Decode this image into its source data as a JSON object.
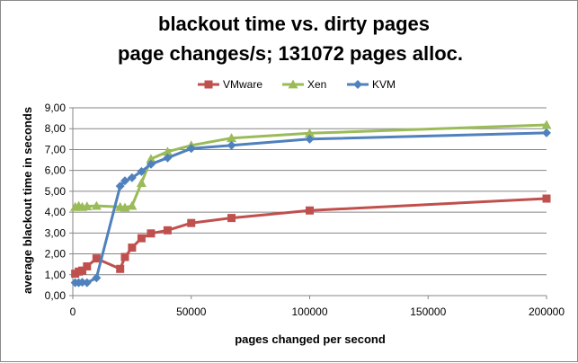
{
  "chart_data": {
    "type": "line",
    "title_lines": [
      "blackout time vs. dirty pages",
      "page changes/s; 131072 pages alloc."
    ],
    "xlabel": "pages changed per second",
    "ylabel": "average blackout time in seconds",
    "xlim": [
      0,
      200000
    ],
    "ylim": [
      0,
      9
    ],
    "x_ticks": [
      "0",
      "50000",
      "100000",
      "150000",
      "200000"
    ],
    "x_tick_values": [
      0,
      50000,
      100000,
      150000,
      200000
    ],
    "y_ticks": [
      "0,00",
      "1,00",
      "2,00",
      "3,00",
      "4,00",
      "5,00",
      "6,00",
      "7,00",
      "8,00",
      "9,00"
    ],
    "y_tick_values": [
      0,
      1,
      2,
      3,
      4,
      5,
      6,
      7,
      8,
      9
    ],
    "grid": "horizontal",
    "legend_position": "top",
    "series": [
      {
        "name": "VMware",
        "color": "#c0504d",
        "marker": "square",
        "points": [
          [
            1000,
            1.05
          ],
          [
            2500,
            1.15
          ],
          [
            4000,
            1.2
          ],
          [
            6000,
            1.4
          ],
          [
            10000,
            1.78
          ],
          [
            20000,
            1.28
          ],
          [
            22000,
            1.85
          ],
          [
            25000,
            2.3
          ],
          [
            29000,
            2.75
          ],
          [
            33000,
            2.98
          ],
          [
            40000,
            3.13
          ],
          [
            50000,
            3.48
          ],
          [
            67000,
            3.72
          ],
          [
            100000,
            4.08
          ],
          [
            200000,
            4.65
          ]
        ]
      },
      {
        "name": "Xen",
        "color": "#9bbb59",
        "marker": "triangle",
        "points": [
          [
            1000,
            4.25
          ],
          [
            2500,
            4.3
          ],
          [
            4000,
            4.25
          ],
          [
            6000,
            4.28
          ],
          [
            10000,
            4.3
          ],
          [
            20000,
            4.25
          ],
          [
            22000,
            4.22
          ],
          [
            25000,
            4.3
          ],
          [
            29000,
            5.4
          ],
          [
            33000,
            6.55
          ],
          [
            40000,
            6.9
          ],
          [
            50000,
            7.2
          ],
          [
            67000,
            7.55
          ],
          [
            100000,
            7.78
          ],
          [
            200000,
            8.18
          ]
        ]
      },
      {
        "name": "KVM",
        "color": "#4f81bd",
        "marker": "diamond",
        "points": [
          [
            1000,
            0.62
          ],
          [
            2500,
            0.62
          ],
          [
            4000,
            0.64
          ],
          [
            6000,
            0.62
          ],
          [
            10000,
            0.85
          ],
          [
            20000,
            5.25
          ],
          [
            22000,
            5.5
          ],
          [
            25000,
            5.65
          ],
          [
            29000,
            5.95
          ],
          [
            33000,
            6.3
          ],
          [
            40000,
            6.6
          ],
          [
            50000,
            7.05
          ],
          [
            67000,
            7.2
          ],
          [
            100000,
            7.5
          ],
          [
            200000,
            7.8
          ]
        ]
      }
    ]
  }
}
